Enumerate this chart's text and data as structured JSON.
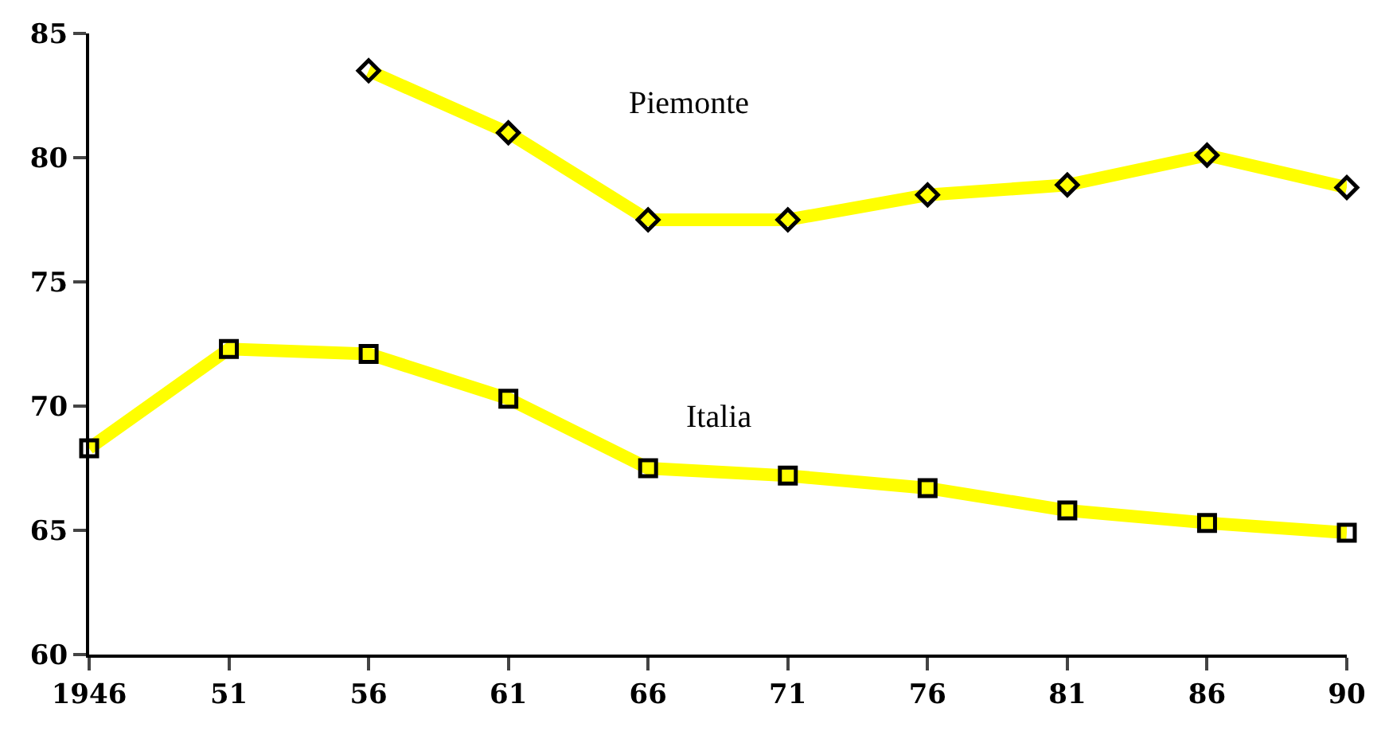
{
  "chart_data": {
    "type": "line",
    "categories": [
      "1946",
      "51",
      "56",
      "61",
      "66",
      "71",
      "76",
      "81",
      "86",
      "90"
    ],
    "series": [
      {
        "name": "Piemonte",
        "color": "#ffff00",
        "marker": "diamond",
        "values": [
          null,
          null,
          83.5,
          81.0,
          77.5,
          77.5,
          78.5,
          78.9,
          80.1,
          78.8
        ]
      },
      {
        "name": "Italia",
        "color": "#ffff00",
        "marker": "square",
        "values": [
          68.3,
          72.3,
          72.1,
          70.3,
          67.5,
          67.2,
          66.7,
          65.8,
          65.3,
          64.9
        ]
      }
    ],
    "ylim": [
      60,
      85
    ],
    "yticks": [
      60,
      65,
      70,
      75,
      80,
      85
    ],
    "grid": false,
    "legend": false
  }
}
